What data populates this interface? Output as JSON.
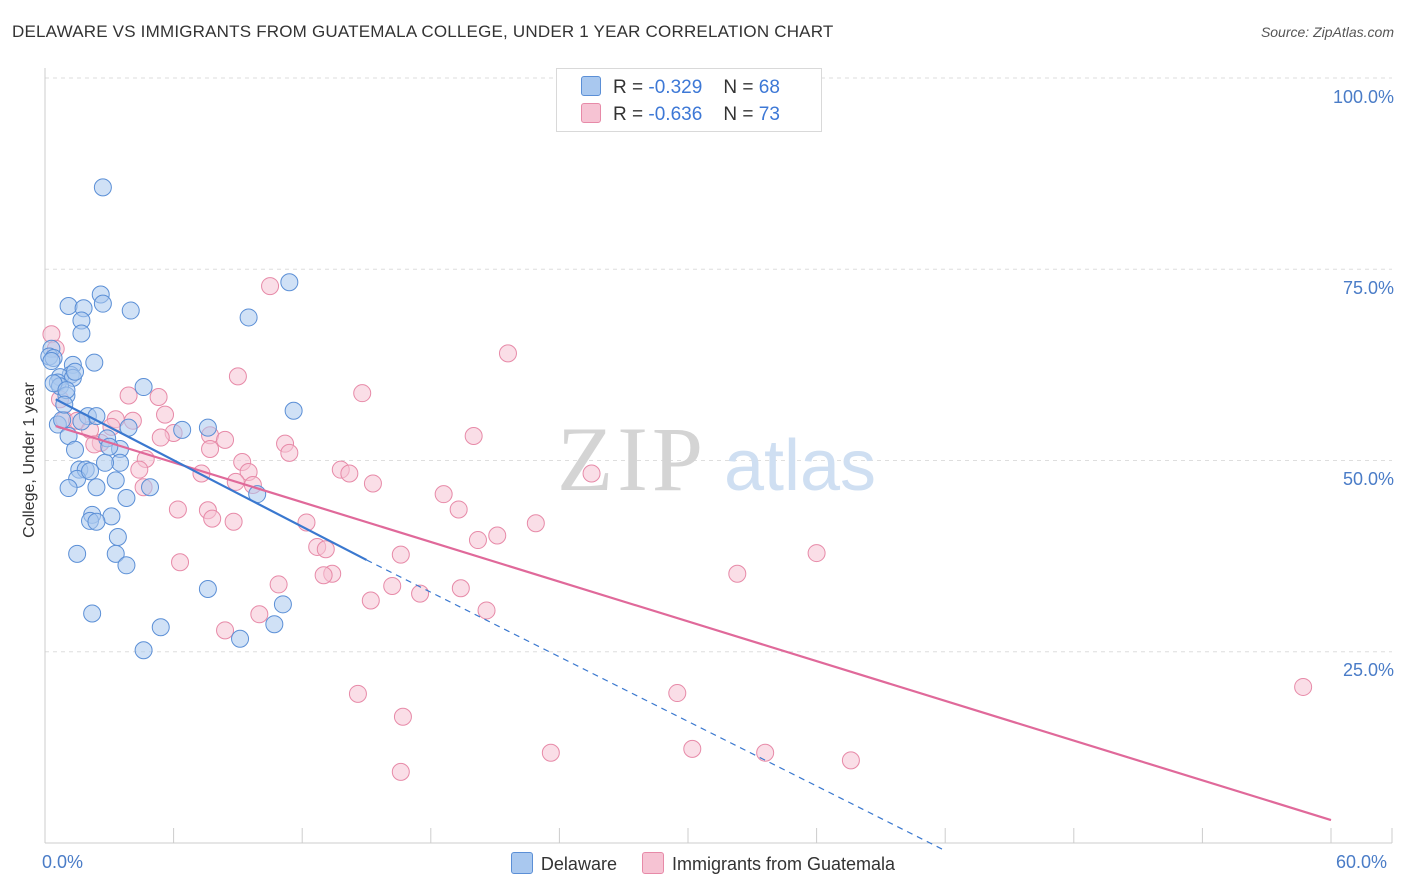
{
  "title": "DELAWARE VS IMMIGRANTS FROM GUATEMALA COLLEGE, UNDER 1 YEAR CORRELATION CHART",
  "source": "Source: ZipAtlas.com",
  "watermark": {
    "zip": "ZIP",
    "atlas": "atlas"
  },
  "legend": {
    "r_label": "R =",
    "n_label": "N =",
    "series1": {
      "r": "-0.329",
      "n": "68"
    },
    "series2": {
      "r": "-0.636",
      "n": "73"
    }
  },
  "colors": {
    "blue_fill": "#a9c8ef",
    "blue_stroke": "#5b8fd6",
    "blue_line": "#3a78cf",
    "pink_fill": "#f6c3d3",
    "pink_stroke": "#e78aa8",
    "pink_line": "#e0699a",
    "tick_text": "#4a7cc7"
  },
  "chart_data": {
    "type": "scatter",
    "title": "DELAWARE VS IMMIGRANTS FROM GUATEMALA COLLEGE, UNDER 1 YEAR CORRELATION CHART",
    "xlabel": "",
    "ylabel": "College, Under 1 year",
    "xlim": [
      0,
      60
    ],
    "ylim": [
      0,
      100
    ],
    "x_tick_labels": [
      "0.0%",
      "60.0%"
    ],
    "y_ticks": [
      {
        "value": 100,
        "label": "100.0%"
      },
      {
        "value": 75,
        "label": "75.0%"
      },
      {
        "value": 50,
        "label": "50.0%"
      },
      {
        "value": 25,
        "label": "25.0%"
      }
    ],
    "grid": true,
    "series": [
      {
        "name": "Delaware",
        "r": -0.329,
        "n": 68,
        "trend": {
          "x0": 0.5,
          "y0": 58,
          "x1": 15,
          "y1": 37,
          "dash_to_x": 42,
          "dash_to_y": -1
        },
        "points": [
          [
            2.7,
            85.7
          ],
          [
            11.4,
            73.3
          ],
          [
            2.6,
            71.7
          ],
          [
            2.7,
            70.5
          ],
          [
            1.1,
            70.2
          ],
          [
            1.8,
            69.9
          ],
          [
            4.0,
            69.6
          ],
          [
            9.5,
            68.7
          ],
          [
            1.7,
            68.3
          ],
          [
            1.7,
            66.6
          ],
          [
            0.3,
            64.6
          ],
          [
            0.2,
            63.6
          ],
          [
            0.4,
            63.4
          ],
          [
            2.3,
            62.8
          ],
          [
            1.3,
            62.5
          ],
          [
            1.2,
            61.2
          ],
          [
            0.7,
            60.9
          ],
          [
            0.6,
            60.2
          ],
          [
            1.3,
            60.8
          ],
          [
            0.7,
            59.7
          ],
          [
            1.0,
            58.5
          ],
          [
            4.6,
            59.6
          ],
          [
            11.6,
            56.5
          ],
          [
            2.0,
            55.8
          ],
          [
            2.4,
            55.8
          ],
          [
            0.6,
            54.7
          ],
          [
            7.6,
            54.3
          ],
          [
            3.9,
            54.3
          ],
          [
            6.4,
            54.0
          ],
          [
            1.1,
            53.2
          ],
          [
            2.9,
            52.9
          ],
          [
            3.5,
            51.5
          ],
          [
            1.4,
            51.4
          ],
          [
            3.5,
            49.7
          ],
          [
            2.8,
            49.7
          ],
          [
            1.6,
            48.8
          ],
          [
            1.9,
            48.8
          ],
          [
            1.5,
            47.6
          ],
          [
            3.3,
            47.4
          ],
          [
            1.1,
            46.4
          ],
          [
            2.4,
            46.5
          ],
          [
            4.9,
            46.5
          ],
          [
            9.9,
            45.6
          ],
          [
            3.8,
            45.1
          ],
          [
            2.2,
            42.9
          ],
          [
            3.1,
            42.7
          ],
          [
            2.1,
            42.1
          ],
          [
            2.4,
            42.0
          ],
          [
            3.4,
            40.0
          ],
          [
            1.5,
            37.8
          ],
          [
            3.3,
            37.8
          ],
          [
            3.8,
            36.3
          ],
          [
            7.6,
            33.2
          ],
          [
            11.1,
            31.2
          ],
          [
            2.2,
            30.0
          ],
          [
            5.4,
            28.2
          ],
          [
            10.7,
            28.6
          ],
          [
            9.1,
            26.7
          ],
          [
            4.6,
            25.2
          ],
          [
            0.4,
            60.1
          ],
          [
            1.0,
            59.2
          ],
          [
            0.3,
            63.0
          ],
          [
            0.8,
            55.3
          ],
          [
            1.4,
            61.6
          ],
          [
            3.0,
            51.8
          ],
          [
            2.1,
            48.6
          ],
          [
            1.7,
            55.1
          ],
          [
            0.9,
            57.3
          ]
        ]
      },
      {
        "name": "Immigrants from Guatemala",
        "r": -0.636,
        "n": 73,
        "trend": {
          "x0": 0.5,
          "y0": 54.5,
          "x1": 60,
          "y1": 3
        },
        "points": [
          [
            0.3,
            66.5
          ],
          [
            10.5,
            72.8
          ],
          [
            21.6,
            64.0
          ],
          [
            0.5,
            64.6
          ],
          [
            9.0,
            61.0
          ],
          [
            14.8,
            58.8
          ],
          [
            3.9,
            58.5
          ],
          [
            5.3,
            58.3
          ],
          [
            0.7,
            58.0
          ],
          [
            5.6,
            56.0
          ],
          [
            3.3,
            55.4
          ],
          [
            0.9,
            55.3
          ],
          [
            4.1,
            55.2
          ],
          [
            1.5,
            55.2
          ],
          [
            3.1,
            54.4
          ],
          [
            2.1,
            54.0
          ],
          [
            6.0,
            53.6
          ],
          [
            7.7,
            53.3
          ],
          [
            20.0,
            53.2
          ],
          [
            5.4,
            53.0
          ],
          [
            8.4,
            52.7
          ],
          [
            2.6,
            52.3
          ],
          [
            11.2,
            52.2
          ],
          [
            2.3,
            52.1
          ],
          [
            7.7,
            51.5
          ],
          [
            11.4,
            51.0
          ],
          [
            4.7,
            50.2
          ],
          [
            9.2,
            49.8
          ],
          [
            13.8,
            48.8
          ],
          [
            14.2,
            48.3
          ],
          [
            25.5,
            48.3
          ],
          [
            4.4,
            48.8
          ],
          [
            7.3,
            48.3
          ],
          [
            9.5,
            48.5
          ],
          [
            15.3,
            47.0
          ],
          [
            4.6,
            46.5
          ],
          [
            9.7,
            46.8
          ],
          [
            18.6,
            45.6
          ],
          [
            19.3,
            43.6
          ],
          [
            6.2,
            43.6
          ],
          [
            7.6,
            43.5
          ],
          [
            22.9,
            41.8
          ],
          [
            7.8,
            42.4
          ],
          [
            8.8,
            42.0
          ],
          [
            12.2,
            41.9
          ],
          [
            20.2,
            39.6
          ],
          [
            21.1,
            40.2
          ],
          [
            12.7,
            38.7
          ],
          [
            13.1,
            38.4
          ],
          [
            16.6,
            37.7
          ],
          [
            36.0,
            37.9
          ],
          [
            6.3,
            36.7
          ],
          [
            13.4,
            35.2
          ],
          [
            13.0,
            35.0
          ],
          [
            32.3,
            35.2
          ],
          [
            10.9,
            33.8
          ],
          [
            16.2,
            33.6
          ],
          [
            19.4,
            33.3
          ],
          [
            17.5,
            32.6
          ],
          [
            15.2,
            31.7
          ],
          [
            20.6,
            30.4
          ],
          [
            10.0,
            29.9
          ],
          [
            8.4,
            27.8
          ],
          [
            14.6,
            19.5
          ],
          [
            29.5,
            19.6
          ],
          [
            58.7,
            20.4
          ],
          [
            16.7,
            16.5
          ],
          [
            23.6,
            11.8
          ],
          [
            30.2,
            12.3
          ],
          [
            33.6,
            11.8
          ],
          [
            37.6,
            10.8
          ],
          [
            16.6,
            9.3
          ],
          [
            8.9,
            47.2
          ]
        ]
      }
    ]
  },
  "bottom_legend": {
    "series1": "Delaware",
    "series2": "Immigrants from Guatemala"
  }
}
